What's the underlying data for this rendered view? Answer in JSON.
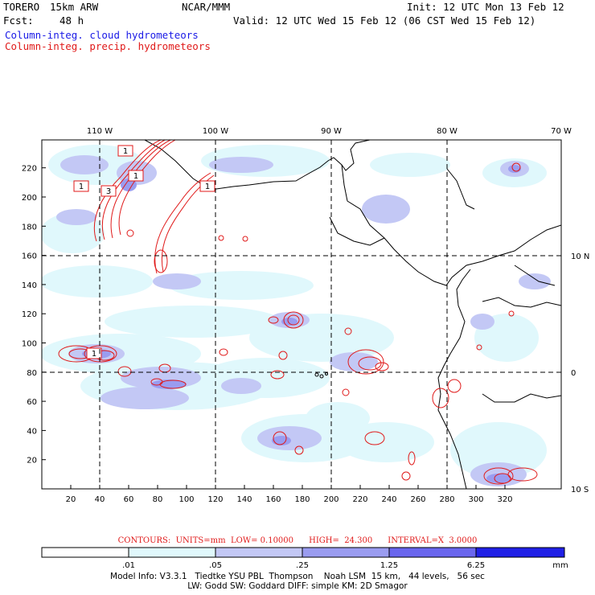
{
  "header": {
    "model": "TORERO",
    "run": "15km ARW",
    "org": "NCAR/MMM",
    "init": "Init: 12 UTC Mon 13 Feb 12",
    "fcst_label": "Fcst:",
    "fcst_hours": "48 h",
    "valid": "Valid: 12 UTC Wed 15 Feb 12 (06 CST Wed 15 Feb 12)",
    "field_cloud": "Column-integ. cloud hydrometeors",
    "field_precip": "Column-integ. precip. hydrometeors"
  },
  "colors": {
    "cloud_text": "#1a1ae6",
    "precip_text": "#e01a1a",
    "contour": "#e01a1a",
    "shade_1": "#e0f8fc",
    "shade_2": "#c3c8f5",
    "shade_3": "#9a9cf0",
    "shade_4": "#6a66ee",
    "shade_5": "#3433e8",
    "shade_6": "#1010e6"
  },
  "map": {
    "top_lon_labels": [
      "110 W",
      "100 W",
      "90 W",
      "80 W",
      "70 W"
    ],
    "right_lat_labels": [
      "10 N",
      "0",
      "10 S"
    ],
    "x_ticks": [
      "20",
      "40",
      "60",
      "80",
      "100",
      "120",
      "140",
      "160",
      "180",
      "200",
      "220",
      "240",
      "260",
      "280",
      "300",
      "320"
    ],
    "y_ticks": [
      "20",
      "40",
      "60",
      "80",
      "100",
      "120",
      "140",
      "160",
      "180",
      "200",
      "220"
    ],
    "contour_labels": [
      "1",
      "1",
      "3",
      "1",
      "1",
      "1"
    ]
  },
  "contours_line": {
    "label": "CONTOURS:",
    "units": "UNITS=mm",
    "low": "LOW= 0.10000",
    "high": "HIGH=  24.300",
    "interval": "INTERVAL=X  3.0000"
  },
  "colorbar": {
    "labels": [
      ".01",
      ".05",
      ".25",
      "1.25",
      "6.25"
    ],
    "units": "mm"
  },
  "model_info": {
    "line1": "Model Info: V3.3.1   Tiedtke YSU PBL  Thompson    Noah LSM  15 km,   44 levels,   56 sec",
    "line2": "LW: Godd SW: Goddard DIFF: simple KM: 2D Smagor"
  }
}
